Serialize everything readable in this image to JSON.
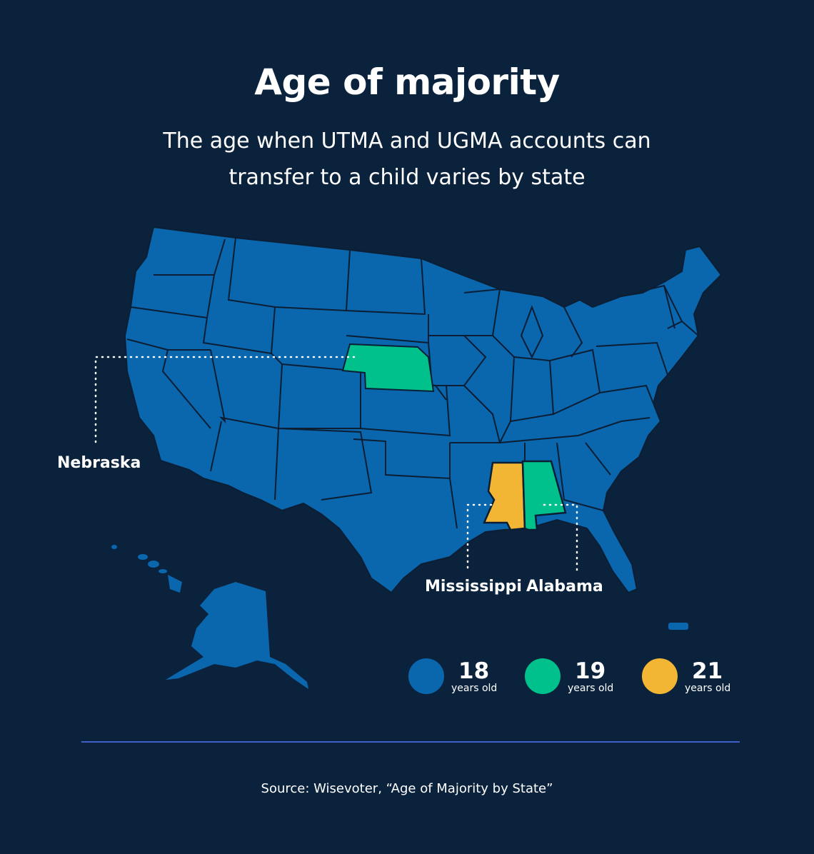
{
  "header": {
    "title": "Age of majority",
    "subtitle_line1": "The age when UTMA and UGMA accounts can",
    "subtitle_line2": "transfer to a child varies by state"
  },
  "map": {
    "callouts": {
      "nebraska": "Nebraska",
      "mississippi": "Mississippi",
      "alabama": "Alabama"
    },
    "states_by_age": {
      "19": [
        "Nebraska",
        "Alabama"
      ],
      "21": [
        "Mississippi"
      ]
    }
  },
  "legend": [
    {
      "age": "18",
      "unit": "years old",
      "color": "#0a66ad"
    },
    {
      "age": "19",
      "unit": "years old",
      "color": "#00c08b"
    },
    {
      "age": "21",
      "unit": "years old",
      "color": "#f2b534"
    }
  ],
  "colors": {
    "background": "#0b223d",
    "land_18": "#0a66ad",
    "state_border": "#0b1e34",
    "age_19": "#00c08b",
    "age_21": "#f2b534",
    "divider": "#3f5fc9"
  },
  "footer": {
    "source": "Source: Wisevoter, “Age of Majority by State”"
  }
}
